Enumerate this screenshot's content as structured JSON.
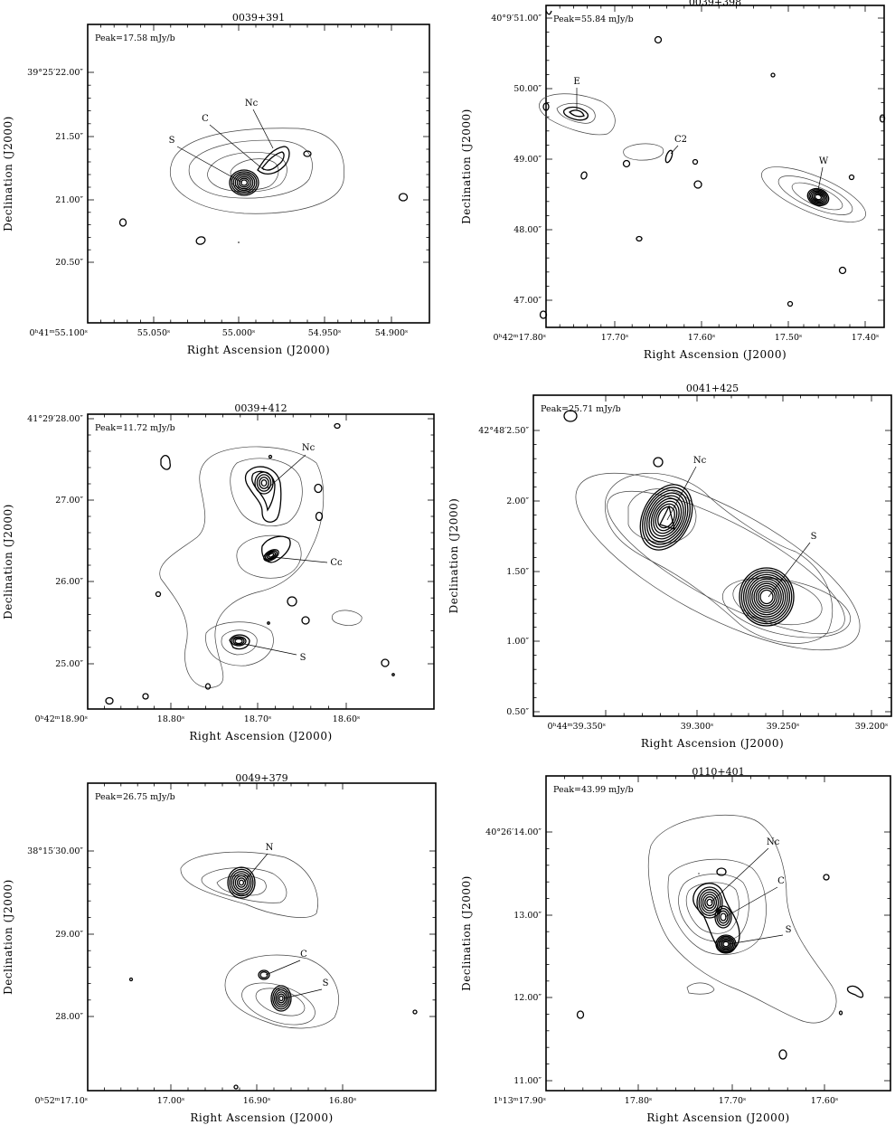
{
  "chart_data": [
    {
      "type": "contour",
      "title": "0039+391",
      "peak_label": "Peak=17.58 mJy/b",
      "xlabel": "Right Ascension (J2000)",
      "ylabel": "Declination (J2000)",
      "xticks": [
        "0ʰ41ᵐ55.100ˢ",
        "55.050ˢ",
        "55.000ˢ",
        "54.950ˢ",
        "54.900ˢ"
      ],
      "yticks": [
        "39°25′22.00″",
        "21.50″",
        "21.00″",
        "20.50″"
      ],
      "components": [
        {
          "label": "Nc"
        },
        {
          "label": "C"
        },
        {
          "label": "S"
        }
      ]
    },
    {
      "type": "contour",
      "title": "0039+398",
      "peak_label": "Peak=55.84 mJy/b",
      "xlabel": "Right Ascension (J2000)",
      "ylabel": "Declination (J2000)",
      "xticks": [
        "0ʰ42ᵐ17.80ˢ",
        "17.70ˢ",
        "17.60ˢ",
        "17.50ˢ",
        "17.40ˢ"
      ],
      "yticks": [
        "40°9′51.00″",
        "50.00″",
        "49.00″",
        "48.00″",
        "47.00″"
      ],
      "components": [
        {
          "label": "E"
        },
        {
          "label": "C2"
        },
        {
          "label": "W"
        }
      ]
    },
    {
      "type": "contour",
      "title": "0039+412",
      "peak_label": "Peak=11.72 mJy/b",
      "xlabel": "Right Ascension (J2000)",
      "ylabel": "Declination (J2000)",
      "xticks": [
        "0ʰ42ᵐ18.90ˢ",
        "18.80ˢ",
        "18.70ˢ",
        "18.60ˢ"
      ],
      "yticks": [
        "41°29′28.00″",
        "27.00″",
        "26.00″",
        "25.00″"
      ],
      "components": [
        {
          "label": "Nc"
        },
        {
          "label": "Cc"
        },
        {
          "label": "S"
        }
      ]
    },
    {
      "type": "contour",
      "title": "0041+425",
      "peak_label": "Peak=25.71 mJy/b",
      "xlabel": "Right Ascension (J2000)",
      "ylabel": "Declination (J2000)",
      "xticks": [
        "0ʰ44ᵐ39.350ˢ",
        "39.300ˢ",
        "39.250ˢ",
        "39.200ˢ"
      ],
      "yticks": [
        "42°48′2.50″",
        "2.00″",
        "1.50″",
        "1.00″",
        "0.50″"
      ],
      "components": [
        {
          "label": "Nc"
        },
        {
          "label": "S"
        }
      ]
    },
    {
      "type": "contour",
      "title": "0049+379",
      "peak_label": "Peak=26.75 mJy/b",
      "xlabel": "Right Ascension (J2000)",
      "ylabel": "Declination (J2000)",
      "xticks": [
        "0ʰ52ᵐ17.10ˢ",
        "17.00ˢ",
        "16.90ˢ",
        "16.80ˢ"
      ],
      "yticks": [
        "38°15′30.00″",
        "29.00″",
        "28.00″"
      ],
      "components": [
        {
          "label": "N"
        },
        {
          "label": "C"
        },
        {
          "label": "S"
        }
      ]
    },
    {
      "type": "contour",
      "title": "0110+401",
      "peak_label": "Peak=43.99 mJy/b",
      "xlabel": "Right Ascension (J2000)",
      "ylabel": "Declination (J2000)",
      "xticks": [
        "1ʰ13ᵐ17.90ˢ",
        "17.80ˢ",
        "17.70ˢ",
        "17.60ˢ"
      ],
      "yticks": [
        "40°26′14.00″",
        "13.00″",
        "12.00″",
        "11.00″"
      ],
      "components": [
        {
          "label": "Nc"
        },
        {
          "label": "C"
        },
        {
          "label": "S"
        }
      ]
    }
  ]
}
